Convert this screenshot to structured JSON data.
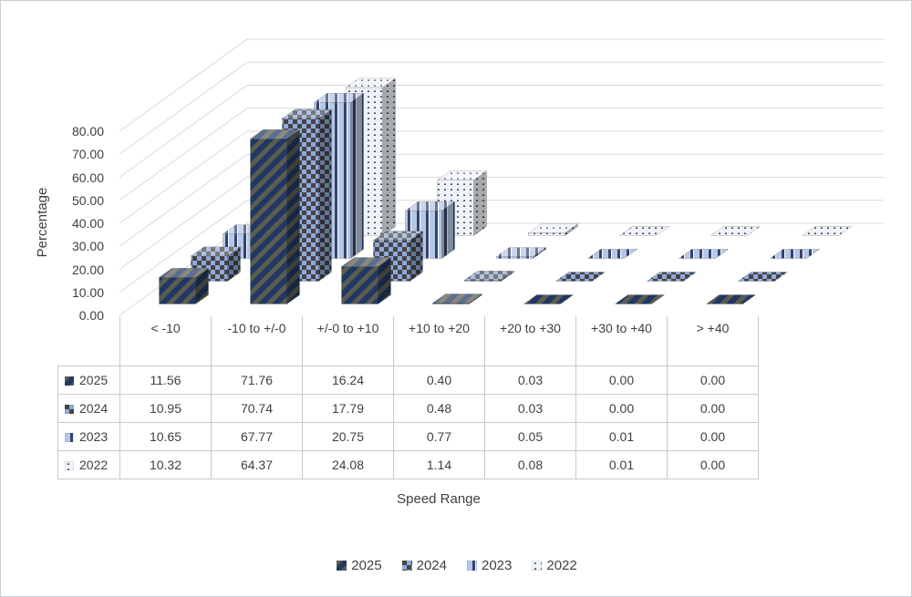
{
  "frame": {
    "background": "#ffffff",
    "border_color": "#c9ced6"
  },
  "chart_data": {
    "type": "bar",
    "projection": "3d",
    "title": "",
    "xlabel": "Speed Range",
    "ylabel": "Percentage",
    "ylim": [
      0,
      80
    ],
    "ytick_step": 10,
    "ytick_labels": [
      "0.00",
      "10.00",
      "20.00",
      "30.00",
      "40.00",
      "50.00",
      "60.00",
      "70.00",
      "80.00"
    ],
    "grid": true,
    "gridline_color": "#d9d9d9",
    "axis_text_color": "#404040",
    "table_border_color": "#c9c9c9",
    "legend_position": "bottom",
    "data_table_shown": true,
    "value_decimals": 2,
    "categories": [
      "< -10",
      "-10 to +/-0",
      "+/-0 to +10",
      "+10 to +20",
      "+20 to +30",
      "+30 to +40",
      "> +40"
    ],
    "series": [
      {
        "name": "2025",
        "pattern": "diagonal-stripes",
        "color_bg": "#1f3864",
        "color_fg": "#5c5c50",
        "values": [
          11.56,
          71.76,
          16.24,
          0.4,
          0.03,
          0.0,
          0.0
        ]
      },
      {
        "name": "2024",
        "pattern": "checkerboard",
        "color_bg": "#8faadc",
        "color_fg": "#454545",
        "values": [
          10.95,
          70.74,
          17.79,
          0.48,
          0.03,
          0.0,
          0.0
        ]
      },
      {
        "name": "2023",
        "pattern": "vertical-stripes",
        "color_bg": "#b4c7e7",
        "color_fg": "#34426b",
        "values": [
          10.65,
          67.77,
          20.75,
          0.77,
          0.05,
          0.01,
          0.0
        ]
      },
      {
        "name": "2022",
        "pattern": "dots",
        "color_bg": "#eef2fa",
        "color_fg": "#4a4a4a",
        "values": [
          10.32,
          64.37,
          24.08,
          1.14,
          0.08,
          0.01,
          0.0
        ]
      }
    ]
  }
}
